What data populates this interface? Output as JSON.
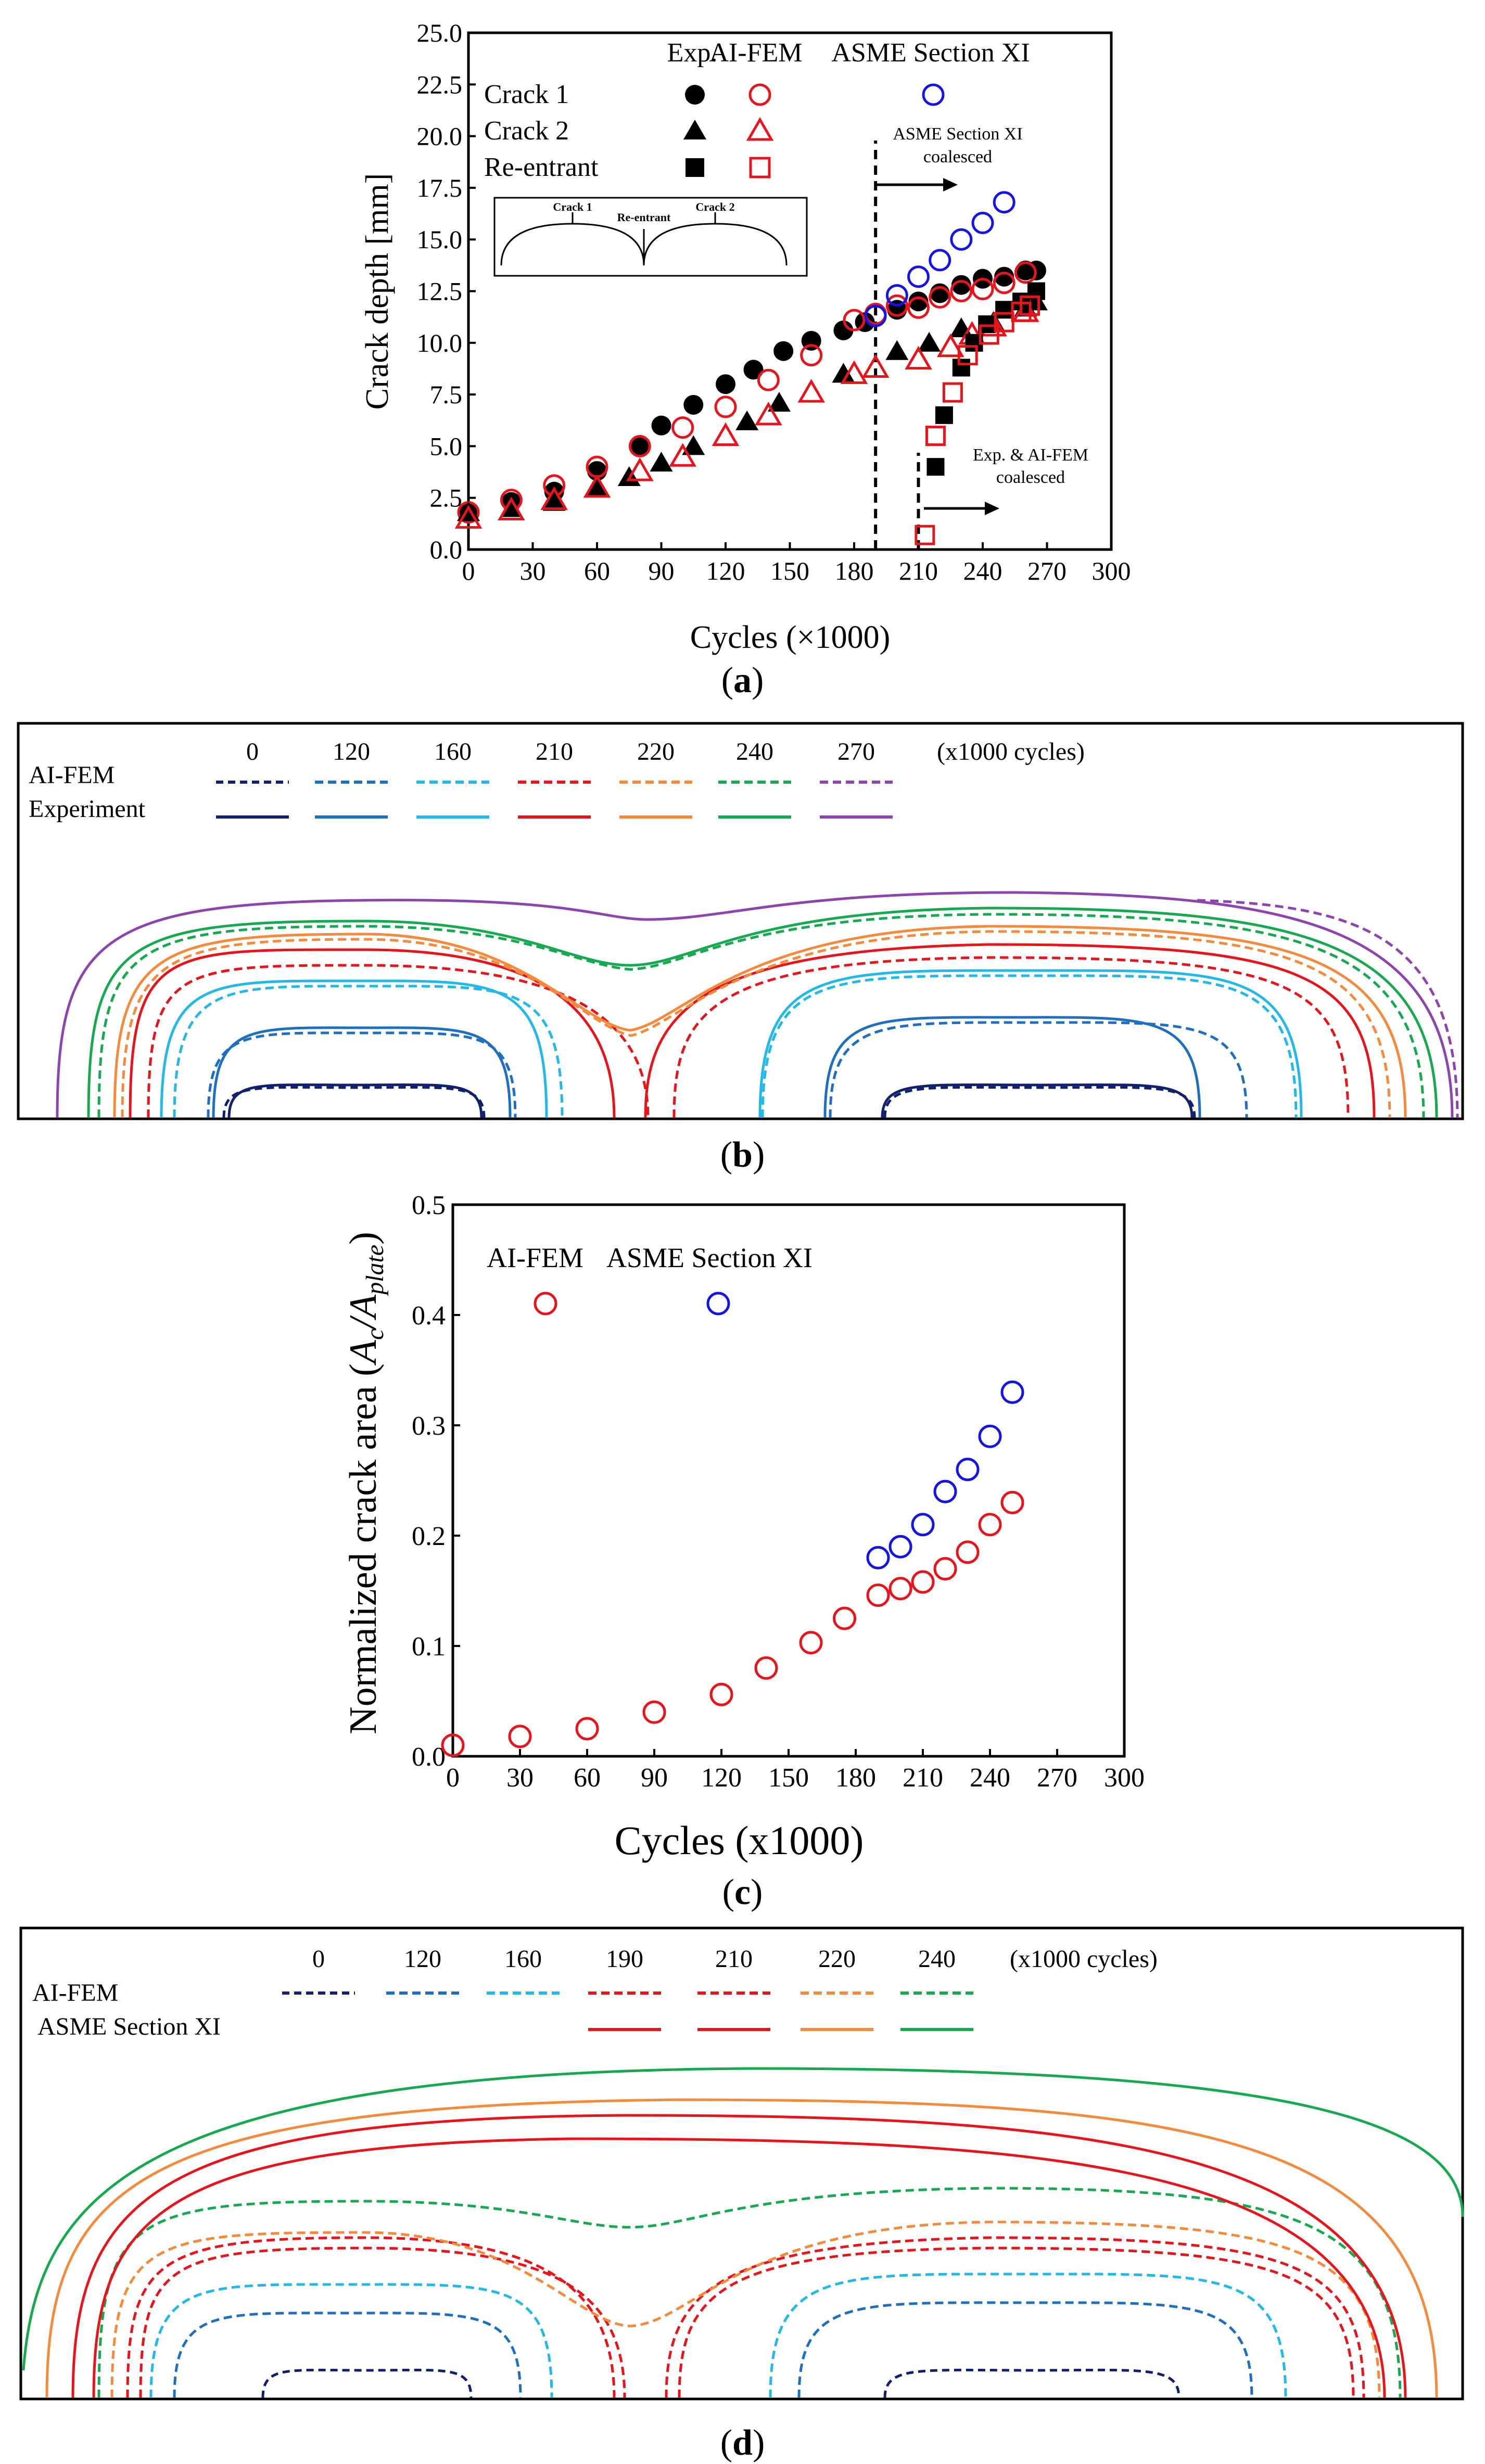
{
  "colors": {
    "red": "#e8141b",
    "blue": "#1414e8",
    "black": "#000000",
    "c0": "#10206e",
    "c120": "#1f6fc0",
    "c160": "#22b8e8",
    "c190": "#e8141b",
    "c210": "#e8141b",
    "c220": "#f58a3c",
    "c240": "#16a950",
    "c270": "#8e44ad"
  },
  "panel_a": {
    "caption": "a",
    "chart_data": {
      "type": "scatter",
      "xlabel": "Cycles (×1000)",
      "ylabel": "Crack depth [mm]",
      "xlim": [
        0,
        300
      ],
      "ylim": [
        0,
        25
      ],
      "xticks": [
        "0",
        "30",
        "60",
        "90",
        "120",
        "150",
        "180",
        "210",
        "240",
        "270",
        "300"
      ],
      "yticks": [
        "0.0",
        "2.5",
        "5.0",
        "7.5",
        "10.0",
        "12.5",
        "15.0",
        "17.5",
        "20.0",
        "22.5",
        "25.0"
      ],
      "legend_headers": [
        "Exp.",
        "AI-FEM",
        "ASME Section XI"
      ],
      "legend_rows": [
        "Crack 1",
        "Crack 2",
        "Re-entrant"
      ],
      "annotation_asme": [
        "ASME Section XI",
        "coalesced"
      ],
      "annotation_exp": [
        "Exp. & AI-FEM",
        "coalesced"
      ],
      "vlines": [
        190,
        210
      ],
      "inset_labels": [
        "Crack 1",
        "Re-entrant",
        "Crack 2"
      ],
      "series": [
        {
          "name": "Crack 1 Exp.",
          "marker": "circle-filled",
          "color": "black",
          "x": [
            0,
            20,
            40,
            60,
            80,
            90,
            105,
            120,
            133,
            147,
            160,
            175,
            185,
            200,
            210,
            220,
            230,
            240,
            250,
            260,
            265
          ],
          "y": [
            1.8,
            2.3,
            2.8,
            3.8,
            5.0,
            6.0,
            7.0,
            8.0,
            8.7,
            9.6,
            10.1,
            10.6,
            11.0,
            11.6,
            12.0,
            12.4,
            12.8,
            13.1,
            13.2,
            13.5,
            13.5
          ]
        },
        {
          "name": "Crack 1 AI-FEM",
          "marker": "circle-open",
          "color": "red",
          "x": [
            0,
            20,
            40,
            60,
            80,
            100,
            120,
            140,
            160,
            180,
            190,
            200,
            210,
            220,
            230,
            240,
            250,
            260
          ],
          "y": [
            1.8,
            2.4,
            3.1,
            4.0,
            5.0,
            5.9,
            6.9,
            8.2,
            9.4,
            11.1,
            11.4,
            11.8,
            11.7,
            12.2,
            12.5,
            12.6,
            12.9,
            13.4
          ]
        },
        {
          "name": "Crack 1 ASME Section XI",
          "marker": "circle-open",
          "color": "blue",
          "x": [
            190,
            200,
            210,
            220,
            230,
            240,
            250
          ],
          "y": [
            11.3,
            12.3,
            13.2,
            14.0,
            15.0,
            15.8,
            16.8
          ]
        },
        {
          "name": "Crack 2 Exp.",
          "marker": "triangle-filled",
          "color": "black",
          "x": [
            0,
            20,
            40,
            60,
            75,
            90,
            105,
            130,
            145,
            175,
            200,
            215,
            230,
            245,
            260,
            265
          ],
          "y": [
            1.8,
            2.0,
            2.3,
            3.0,
            3.5,
            4.2,
            5.0,
            6.2,
            7.1,
            8.5,
            9.6,
            10.0,
            10.7,
            11.0,
            11.7,
            12.0
          ]
        },
        {
          "name": "Crack 2 AI-FEM",
          "marker": "triangle-open",
          "color": "red",
          "x": [
            0,
            20,
            40,
            60,
            80,
            100,
            120,
            140,
            160,
            180,
            190,
            210,
            225,
            235,
            245,
            260
          ],
          "y": [
            1.5,
            1.9,
            2.4,
            3.0,
            3.8,
            4.5,
            5.5,
            6.5,
            7.6,
            8.5,
            8.8,
            9.2,
            9.8,
            10.4,
            10.8,
            11.5
          ]
        },
        {
          "name": "Re-entrant Exp.",
          "marker": "square-filled",
          "color": "black",
          "x": [
            218,
            222,
            230,
            236,
            242,
            250,
            258,
            265
          ],
          "y": [
            4.0,
            6.5,
            8.8,
            10.0,
            10.9,
            11.6,
            12.0,
            12.5
          ]
        },
        {
          "name": "Re-entrant AI-FEM",
          "marker": "square-open",
          "color": "red",
          "x": [
            213,
            218,
            226,
            233,
            243,
            250,
            258,
            262
          ],
          "y": [
            0.7,
            5.5,
            7.6,
            9.4,
            10.4,
            11.0,
            11.5,
            11.8
          ]
        }
      ]
    }
  },
  "panel_b": {
    "caption": "b",
    "legend_labels": [
      "0",
      "120",
      "160",
      "210",
      "220",
      "240",
      "270"
    ],
    "unit": "(x1000 cycles)",
    "row_dashed": "AI-FEM",
    "row_solid": "Experiment"
  },
  "panel_c": {
    "caption": "c",
    "chart_data": {
      "type": "scatter",
      "xlabel": "Cycles (x1000)",
      "ylabel_main": "Normalized crack area (",
      "ylabel_a": "A",
      "ylabel_c": "c",
      "ylabel_slash": "/",
      "ylabel_plate": "plate",
      "ylabel_close": ")",
      "xlim": [
        0,
        300
      ],
      "ylim": [
        0,
        0.5
      ],
      "xticks": [
        "0",
        "30",
        "60",
        "90",
        "120",
        "150",
        "180",
        "210",
        "240",
        "270",
        "300"
      ],
      "yticks": [
        "0.0",
        "0.1",
        "0.2",
        "0.3",
        "0.4",
        "0.5"
      ],
      "legend": [
        "AI-FEM",
        "ASME Section XI"
      ],
      "series": [
        {
          "name": "AI-FEM",
          "marker": "circle-open",
          "color": "red",
          "x": [
            0,
            30,
            60,
            90,
            120,
            140,
            160,
            175,
            190,
            200,
            210,
            220,
            230,
            240,
            250
          ],
          "y": [
            0.01,
            0.018,
            0.025,
            0.04,
            0.056,
            0.08,
            0.103,
            0.125,
            0.146,
            0.152,
            0.158,
            0.17,
            0.185,
            0.21,
            0.23
          ]
        },
        {
          "name": "ASME Section XI",
          "marker": "circle-open",
          "color": "blue",
          "x": [
            190,
            200,
            210,
            220,
            230,
            240,
            250
          ],
          "y": [
            0.18,
            0.19,
            0.21,
            0.24,
            0.26,
            0.29,
            0.33
          ]
        }
      ]
    }
  },
  "panel_d": {
    "caption": "d",
    "legend_labels": [
      "0",
      "120",
      "160",
      "190",
      "210",
      "220",
      "240"
    ],
    "unit": "(x1000 cycles)",
    "row_dashed": "AI-FEM",
    "row_solid": "ASME Section XI"
  }
}
